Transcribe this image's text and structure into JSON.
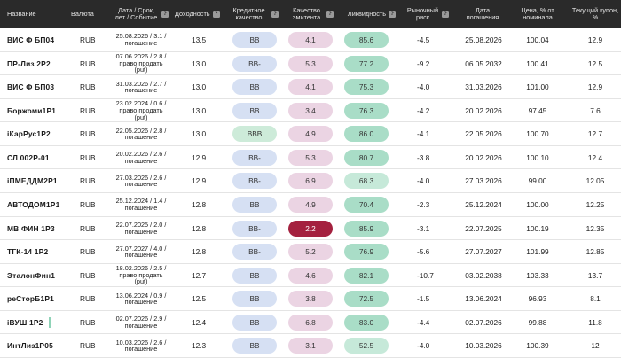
{
  "headers": {
    "name": "Название",
    "currency": "Валюта",
    "date": "Дата / Срок, лет / Событие",
    "yield": "Доходность",
    "credit": "Кредитное качество",
    "issuer": "Качество эмитента",
    "liquidity": "Ликвидность",
    "risk": "Рыночный риск",
    "maturity": "Дата погашения",
    "price": "Цена, % от номинала",
    "coupon": "Текущий купон, %",
    "help": "?"
  },
  "rows": [
    {
      "name": "ВИС Ф БП04",
      "currency": "RUB",
      "date": "25.08.2026 / 3.1 / погашение",
      "yield": "13.5",
      "credit": "BB",
      "issuer": "4.1",
      "liquidity": "85.6",
      "risk": "-4.5",
      "maturity": "25.08.2026",
      "price": "100.04",
      "coupon": "12.9"
    },
    {
      "name": "ПР-Лиз 2Р2",
      "currency": "RUB",
      "date": "07.06.2026 / 2.8 / право продать (put)",
      "yield": "13.0",
      "credit": "BB-",
      "issuer": "5.3",
      "liquidity": "77.2",
      "risk": "-9.2",
      "maturity": "06.05.2032",
      "price": "100.41",
      "coupon": "12.5"
    },
    {
      "name": "ВИС Ф БП03",
      "currency": "RUB",
      "date": "31.03.2026 / 2.7 / погашение",
      "yield": "13.0",
      "credit": "BB",
      "issuer": "4.1",
      "liquidity": "75.3",
      "risk": "-4.0",
      "maturity": "31.03.2026",
      "price": "101.00",
      "coupon": "12.9"
    },
    {
      "name": "Боржоми1Р1",
      "currency": "RUB",
      "date": "23.02.2024 / 0.6 / право продать (put)",
      "yield": "13.0",
      "credit": "BB",
      "issuer": "3.4",
      "liquidity": "76.3",
      "risk": "-4.2",
      "maturity": "20.02.2026",
      "price": "97.45",
      "coupon": "7.6"
    },
    {
      "name": "iКарРус1Р2",
      "currency": "RUB",
      "date": "22.05.2026 / 2.8 / погашение",
      "yield": "13.0",
      "credit": "BBB",
      "issuer": "4.9",
      "liquidity": "86.0",
      "risk": "-4.1",
      "maturity": "22.05.2026",
      "price": "100.70",
      "coupon": "12.7"
    },
    {
      "name": "СЛ 002Р-01",
      "currency": "RUB",
      "date": "20.02.2026 / 2.6 / погашение",
      "yield": "12.9",
      "credit": "BB-",
      "issuer": "5.3",
      "liquidity": "80.7",
      "risk": "-3.8",
      "maturity": "20.02.2026",
      "price": "100.10",
      "coupon": "12.4"
    },
    {
      "name": "iПМЕДДМ2Р1",
      "currency": "RUB",
      "date": "27.03.2026 / 2.6 / погашение",
      "yield": "12.9",
      "credit": "BB-",
      "issuer": "6.9",
      "liquidity": "68.3",
      "risk": "-4.0",
      "maturity": "27.03.2026",
      "price": "99.00",
      "coupon": "12.05"
    },
    {
      "name": "АВТОДОМ1Р1",
      "currency": "RUB",
      "date": "25.12.2024 / 1.4 / погашение",
      "yield": "12.8",
      "credit": "BB",
      "issuer": "4.9",
      "liquidity": "70.4",
      "risk": "-2.3",
      "maturity": "25.12.2024",
      "price": "100.00",
      "coupon": "12.25"
    },
    {
      "name": "МВ ФИН 1Р3",
      "currency": "RUB",
      "date": "22.07.2025 / 2.0 / погашение",
      "yield": "12.8",
      "credit": "BB-",
      "issuer": "2.2",
      "liquidity": "85.9",
      "risk": "-3.1",
      "maturity": "22.07.2025",
      "price": "100.19",
      "coupon": "12.35"
    },
    {
      "name": "ТГК-14 1Р2",
      "currency": "RUB",
      "date": "27.07.2027 / 4.0 / погашение",
      "yield": "12.8",
      "credit": "BB-",
      "issuer": "5.2",
      "liquidity": "76.9",
      "risk": "-5.6",
      "maturity": "27.07.2027",
      "price": "101.99",
      "coupon": "12.85"
    },
    {
      "name": "ЭталонФин1",
      "currency": "RUB",
      "date": "18.02.2026 / 2.5 / право продать (put)",
      "yield": "12.7",
      "credit": "BB",
      "issuer": "4.6",
      "liquidity": "82.1",
      "risk": "-10.7",
      "maturity": "03.02.2038",
      "price": "103.33",
      "coupon": "13.7"
    },
    {
      "name": "реСторБ1Р1",
      "currency": "RUB",
      "date": "13.06.2024 / 0.9 / погашение",
      "yield": "12.5",
      "credit": "BB",
      "issuer": "3.8",
      "liquidity": "72.5",
      "risk": "-1.5",
      "maturity": "13.06.2024",
      "price": "96.93",
      "coupon": "8.1"
    },
    {
      "name": "iВУШ 1Р2",
      "currency": "RUB",
      "date": "02.07.2026 / 2.9 / погашение",
      "yield": "12.4",
      "credit": "BB",
      "issuer": "6.8",
      "liquidity": "83.0",
      "risk": "-4.4",
      "maturity": "02.07.2026",
      "price": "99.88",
      "coupon": "11.8"
    },
    {
      "name": "ИнтЛиз1Р05",
      "currency": "RUB",
      "date": "10.03.2026 / 2.6 / погашение",
      "yield": "12.3",
      "credit": "BB",
      "issuer": "3.1",
      "liquidity": "52.5",
      "risk": "-4.0",
      "maturity": "10.03.2026",
      "price": "100.39",
      "coupon": "12"
    }
  ]
}
